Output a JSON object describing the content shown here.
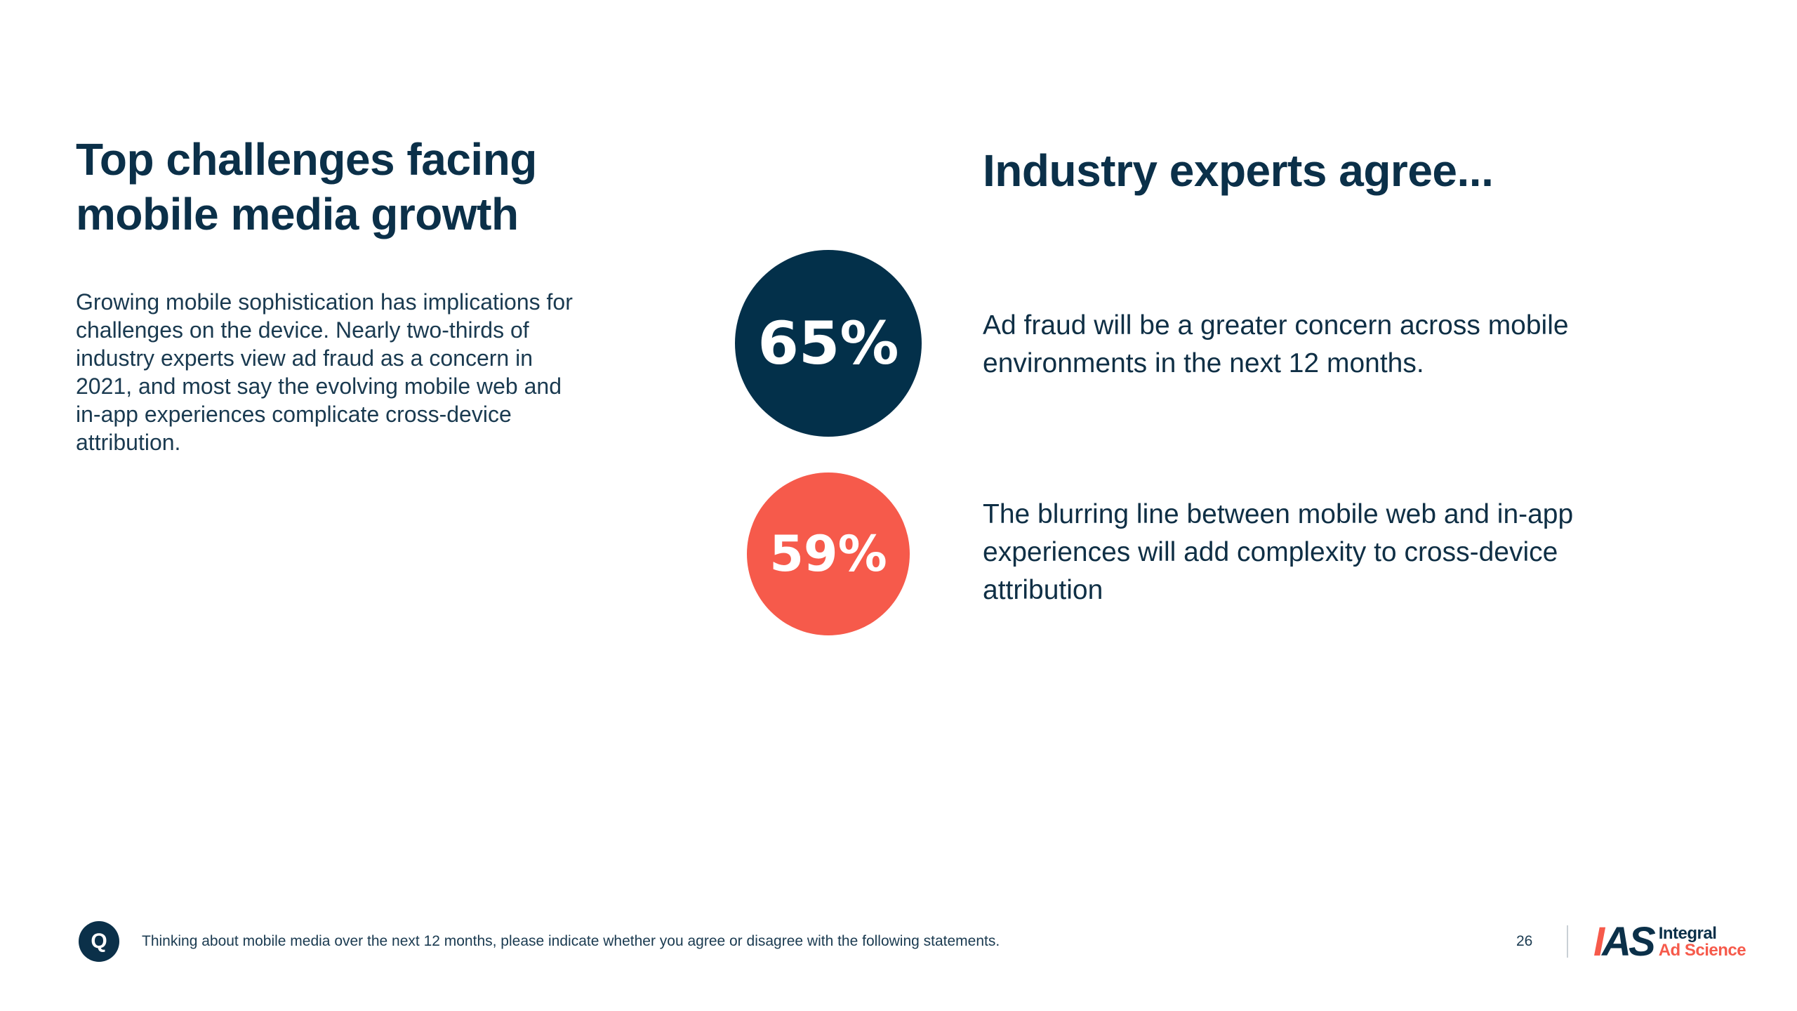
{
  "left": {
    "title": "Top challenges facing mobile media growth",
    "body": "Growing mobile sophistication has implications for challenges on the device. Nearly two-thirds of industry experts view ad fraud as a concern in 2021, and most say the evolving mobile web and in-app experiences complicate cross-device attribution."
  },
  "right": {
    "title": "Industry experts agree...",
    "stats": [
      {
        "value": "65%",
        "statement": "Ad fraud will be a greater concern across mobile environments in the next 12 months.",
        "color": "#03304a"
      },
      {
        "value": "59%",
        "statement": "The blurring line between mobile web and in-app experiences will add complexity to cross-device attribution",
        "color": "#f65a4b"
      }
    ]
  },
  "footer": {
    "q_label": "Q",
    "question": "Thinking about mobile media over the next 12 months, please indicate whether you agree or disagree with the following statements.",
    "page_number": "26"
  },
  "logo": {
    "mark_part1": "I",
    "mark_part2": "AS",
    "line1": "Integral",
    "line2": "Ad Science"
  },
  "colors": {
    "navy": "#0b3049",
    "coral": "#f65a4b"
  }
}
